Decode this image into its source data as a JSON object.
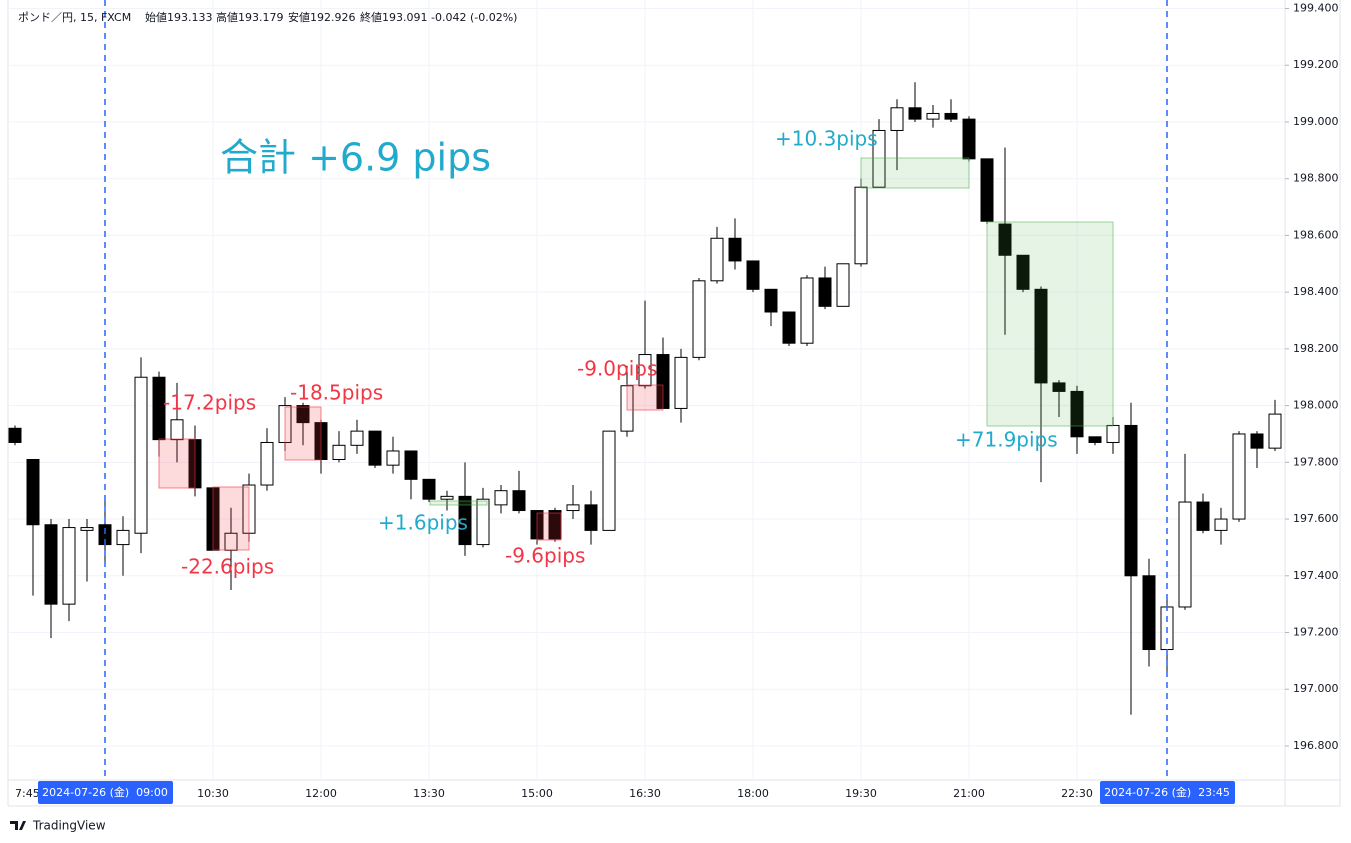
{
  "chart_data": {
    "type": "candlestick",
    "legend": [
      "ポンド／円, 15, FXCM",
      "始値193.133",
      "高値193.179",
      "安値192.926",
      "終値193.091",
      "-0.042 (-0.02%)"
    ],
    "title": "合計 +6.9 pips",
    "annotations": [
      {
        "text": "-17.2pips",
        "color": "#f23645"
      },
      {
        "text": "-22.6pips",
        "color": "#f23645"
      },
      {
        "text": "-18.5pips",
        "color": "#f23645"
      },
      {
        "text": "+1.6pips",
        "color": "#22aacc"
      },
      {
        "text": "-9.6pips",
        "color": "#f23645"
      },
      {
        "text": "-9.0pips",
        "color": "#f23645"
      },
      {
        "text": "+10.3pips",
        "color": "#22aacc"
      },
      {
        "text": "+71.9pips",
        "color": "#22aacc"
      }
    ],
    "categories": [
      "7:45",
      null,
      null,
      null,
      null,
      "2024-07-26 (金)  09:00",
      null,
      null,
      null,
      null,
      null,
      "10:30",
      null,
      null,
      null,
      null,
      null,
      "12:00",
      null,
      null,
      null,
      null,
      null,
      "13:30",
      null,
      null,
      null,
      null,
      null,
      "15:00",
      null,
      null,
      null,
      null,
      null,
      "16:30",
      null,
      null,
      null,
      null,
      null,
      "18:00",
      null,
      null,
      null,
      null,
      null,
      "19:30",
      null,
      null,
      null,
      null,
      null,
      "21:00",
      null,
      null,
      null,
      null,
      null,
      "22:30",
      null,
      null,
      null,
      null,
      "2024-07-26 (金)  23:45",
      null,
      null,
      null,
      null,
      null,
      null
    ],
    "open": [
      197.92,
      197.81,
      197.58,
      197.3,
      197.56,
      197.58,
      197.51,
      197.55,
      198.1,
      197.88,
      197.88,
      197.71,
      197.49,
      197.55,
      197.72,
      197.87,
      198.0,
      197.94,
      197.81,
      197.86,
      197.91,
      197.79,
      197.84,
      197.74,
      197.67,
      197.68,
      197.51,
      197.65,
      197.7,
      197.63,
      197.63,
      197.63,
      197.65,
      197.56,
      197.91,
      198.07,
      198.18,
      197.99,
      198.17,
      198.44,
      198.59,
      198.51,
      198.41,
      198.33,
      198.22,
      198.45,
      198.35,
      198.5,
      198.77,
      198.97,
      199.05,
      199.01,
      199.03,
      199.01,
      198.87,
      198.64,
      198.53,
      198.41,
      198.08,
      198.05,
      197.89,
      197.87,
      197.93,
      197.4,
      197.14,
      197.29,
      197.66,
      197.56,
      197.6,
      197.9,
      197.85
    ],
    "high": [
      197.93,
      197.81,
      197.6,
      197.6,
      197.6,
      197.67,
      197.61,
      198.17,
      198.12,
      198.08,
      197.93,
      197.71,
      197.64,
      197.76,
      197.92,
      198.03,
      198.01,
      197.95,
      197.91,
      197.95,
      197.91,
      197.89,
      197.84,
      197.74,
      197.7,
      197.8,
      197.71,
      197.72,
      197.77,
      197.63,
      197.64,
      197.72,
      197.7,
      197.91,
      198.14,
      198.37,
      198.24,
      198.2,
      198.45,
      198.63,
      198.66,
      198.51,
      198.41,
      198.33,
      198.46,
      198.49,
      198.5,
      198.8,
      199.01,
      199.08,
      199.14,
      199.06,
      199.08,
      199.02,
      198.87,
      198.91,
      198.53,
      198.42,
      198.09,
      198.07,
      197.89,
      197.96,
      198.01,
      197.46,
      197.32,
      197.83,
      197.69,
      197.64,
      197.91,
      197.91,
      198.02
    ],
    "low": [
      197.86,
      197.33,
      197.18,
      197.24,
      197.38,
      197.45,
      197.4,
      197.48,
      197.82,
      197.8,
      197.68,
      197.49,
      197.35,
      197.52,
      197.7,
      197.84,
      197.86,
      197.76,
      197.8,
      197.83,
      197.78,
      197.76,
      197.67,
      197.66,
      197.63,
      197.47,
      197.5,
      197.62,
      197.62,
      197.51,
      197.52,
      197.6,
      197.51,
      197.56,
      197.89,
      198.06,
      197.99,
      197.94,
      198.16,
      198.43,
      198.48,
      198.4,
      198.28,
      198.21,
      198.21,
      198.34,
      198.35,
      198.49,
      198.77,
      198.83,
      199.0,
      198.98,
      199.0,
      198.86,
      198.64,
      198.25,
      198.4,
      197.73,
      197.96,
      197.83,
      197.86,
      197.83,
      196.91,
      197.08,
      197.06,
      197.28,
      197.55,
      197.51,
      197.59,
      197.78,
      197.84
    ],
    "close": [
      197.87,
      197.58,
      197.3,
      197.57,
      197.57,
      197.51,
      197.56,
      198.1,
      197.88,
      197.95,
      197.71,
      197.49,
      197.55,
      197.72,
      197.87,
      198.0,
      197.94,
      197.81,
      197.86,
      197.91,
      197.79,
      197.84,
      197.74,
      197.67,
      197.68,
      197.51,
      197.67,
      197.7,
      197.63,
      197.53,
      197.53,
      197.65,
      197.56,
      197.91,
      198.07,
      198.18,
      197.99,
      198.17,
      198.44,
      198.59,
      198.51,
      198.41,
      198.33,
      198.22,
      198.45,
      198.35,
      198.5,
      198.77,
      198.97,
      199.05,
      199.01,
      199.03,
      199.01,
      198.87,
      198.65,
      198.53,
      198.41,
      198.08,
      198.05,
      197.89,
      197.87,
      197.93,
      197.4,
      197.14,
      197.29,
      197.66,
      197.56,
      197.6,
      197.9,
      197.85,
      197.97
    ],
    "up_color": "#ffffff",
    "down_color": "#000000",
    "ylim": [
      196.68,
      199.43
    ],
    "yticks": [
      {
        "value": 196.8,
        "label": "196.800"
      },
      {
        "value": 197.0,
        "label": "197.000"
      },
      {
        "value": 197.2,
        "label": "197.200"
      },
      {
        "value": 197.4,
        "label": "197.400"
      },
      {
        "value": 197.6,
        "label": "197.600"
      },
      {
        "value": 197.8,
        "label": "197.800"
      },
      {
        "value": 198.0,
        "label": "198.000"
      },
      {
        "value": 198.2,
        "label": "198.200"
      },
      {
        "value": 198.4,
        "label": "198.400"
      },
      {
        "value": 198.6,
        "label": "198.600"
      },
      {
        "value": 198.8,
        "label": "198.800"
      },
      {
        "value": 199.0,
        "label": "199.000"
      },
      {
        "value": 199.2,
        "label": "199.200"
      },
      {
        "value": 199.4,
        "label": "199.400"
      }
    ],
    "grid": true
  },
  "footer": "TradingView"
}
